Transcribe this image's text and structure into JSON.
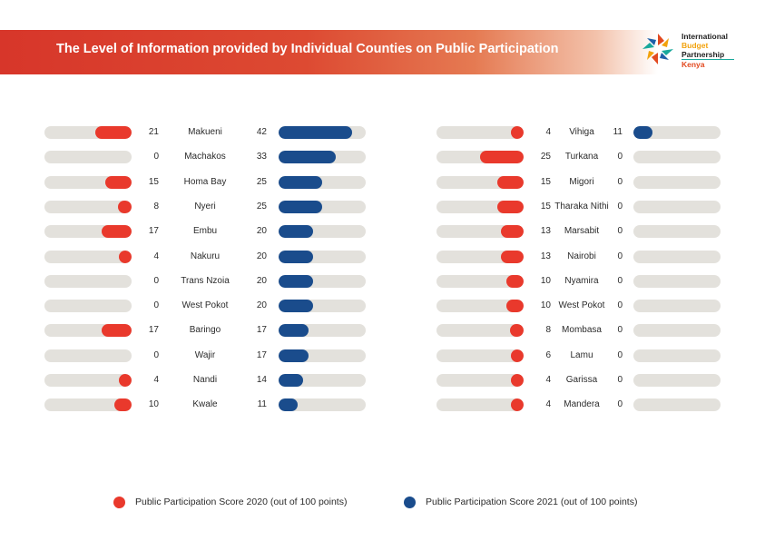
{
  "header": {
    "title": "The Level of Information provided by Individual Counties on Public Participation"
  },
  "logo": {
    "line1": "International",
    "line2": "Budget",
    "line3": "Partnership",
    "line4": "Kenya"
  },
  "colors": {
    "score_2020": "#e9392c",
    "score_2021": "#1a4c8c",
    "track": "#e3e1dc"
  },
  "legend": {
    "score_2020": "Public Participation Score 2020 (out of 100 points)",
    "score_2021": "Public Participation Score 2021 (out of 100 points)"
  },
  "chart_data": [
    {
      "type": "bar",
      "title": "",
      "xlim": [
        0,
        100
      ],
      "categories": [
        "Makueni",
        "Machakos",
        "Homa Bay",
        "Nyeri",
        "Embu",
        "Nakuru",
        "Trans Nzoia",
        "West Pokot",
        "Baringo",
        "Wajir",
        "Nandi",
        "Kwale"
      ],
      "series": [
        {
          "name": "Public Participation Score 2020 (out of 100 points)",
          "values": [
            21,
            0,
            15,
            8,
            17,
            4,
            0,
            0,
            17,
            0,
            4,
            10
          ]
        },
        {
          "name": "Public Participation Score 2021 (out of 100 points)",
          "values": [
            42,
            33,
            25,
            25,
            20,
            20,
            20,
            20,
            17,
            17,
            14,
            11
          ]
        }
      ]
    },
    {
      "type": "bar",
      "title": "",
      "xlim": [
        0,
        100
      ],
      "categories": [
        "Vihiga",
        "Turkana",
        "Migori",
        "Tharaka Nithi",
        "Marsabit",
        "Nairobi",
        "Nyamira",
        "West Pokot",
        "Mombasa",
        "Lamu",
        "Garissa",
        "Mandera"
      ],
      "series": [
        {
          "name": "Public Participation Score 2020 (out of 100 points)",
          "values": [
            4,
            25,
            15,
            15,
            13,
            13,
            10,
            10,
            8,
            6,
            4,
            4
          ]
        },
        {
          "name": "Public Participation Score 2021 (out of 100 points)",
          "values": [
            11,
            0,
            0,
            0,
            0,
            0,
            0,
            0,
            0,
            0,
            0,
            0
          ]
        }
      ]
    }
  ]
}
